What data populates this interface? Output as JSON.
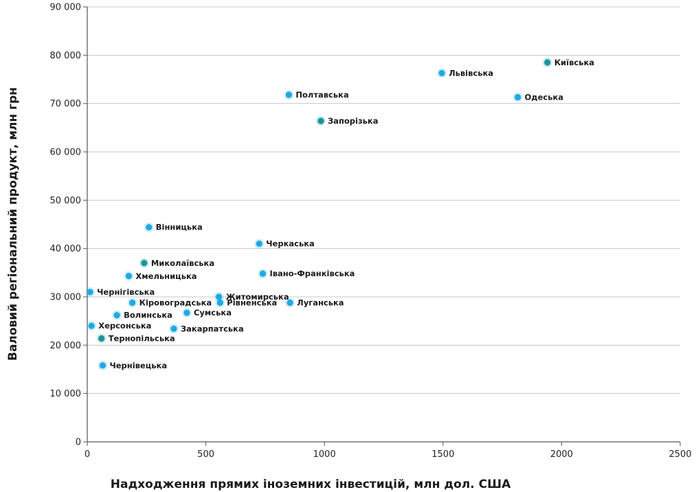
{
  "chart_data": {
    "type": "scatter",
    "xlabel": "Надходження прямих іноземних інвестицій, млн дол. США",
    "ylabel": "Валовий регіональний продукт, млн грн",
    "xlim": [
      0,
      2500
    ],
    "ylim": [
      0,
      90000
    ],
    "x_ticks": [
      0,
      500,
      1000,
      1500,
      2000,
      2500
    ],
    "y_ticks": [
      0,
      10000,
      20000,
      30000,
      40000,
      50000,
      60000,
      70000,
      80000,
      90000
    ],
    "x_tick_labels": [
      "0",
      "500",
      "1000",
      "1500",
      "2000",
      "2500"
    ],
    "y_tick_labels": [
      "0",
      "10 000",
      "20 000",
      "30 000",
      "40 000",
      "50 000",
      "60 000",
      "70 000",
      "80 000",
      "90 000"
    ],
    "grid": "horizontal",
    "colors": {
      "light": "#1fa9e1",
      "dark": "#17969b",
      "grid": "#c8c8c8",
      "axis": "#555555"
    },
    "points": [
      {
        "label": "Київська",
        "x": 1940,
        "y": 78500,
        "color": "dark"
      },
      {
        "label": "Львівська",
        "x": 1495,
        "y": 76300,
        "color": "light"
      },
      {
        "label": "Одеська",
        "x": 1815,
        "y": 71300,
        "color": "light"
      },
      {
        "label": "Полтавська",
        "x": 850,
        "y": 71800,
        "color": "light"
      },
      {
        "label": "Запорізька",
        "x": 985,
        "y": 66400,
        "color": "dark"
      },
      {
        "label": "Вінницька",
        "x": 260,
        "y": 44400,
        "color": "light"
      },
      {
        "label": "Черкаська",
        "x": 725,
        "y": 41000,
        "color": "light"
      },
      {
        "label": "Миколаївська",
        "x": 240,
        "y": 37000,
        "color": "dark"
      },
      {
        "label": "Хмельницька",
        "x": 175,
        "y": 34300,
        "color": "light"
      },
      {
        "label": "Івано-Франківська",
        "x": 740,
        "y": 34800,
        "color": "light"
      },
      {
        "label": "Чернігівська",
        "x": 12,
        "y": 31000,
        "color": "light"
      },
      {
        "label": "Житомирська",
        "x": 555,
        "y": 30000,
        "color": "light"
      },
      {
        "label": "Кіровоградська",
        "x": 190,
        "y": 28800,
        "color": "light"
      },
      {
        "label": "Рівненська",
        "x": 560,
        "y": 28800,
        "color": "light"
      },
      {
        "label": "Луганська",
        "x": 855,
        "y": 28800,
        "color": "light"
      },
      {
        "label": "Волинська",
        "x": 125,
        "y": 26200,
        "color": "light"
      },
      {
        "label": "Сумська",
        "x": 420,
        "y": 26700,
        "color": "light"
      },
      {
        "label": "Херсонська",
        "x": 18,
        "y": 24000,
        "color": "light"
      },
      {
        "label": "Закарпатська",
        "x": 365,
        "y": 23400,
        "color": "light"
      },
      {
        "label": "Тернопільська",
        "x": 60,
        "y": 21400,
        "color": "dark"
      },
      {
        "label": "Чернівецька",
        "x": 65,
        "y": 15800,
        "color": "light"
      }
    ]
  }
}
